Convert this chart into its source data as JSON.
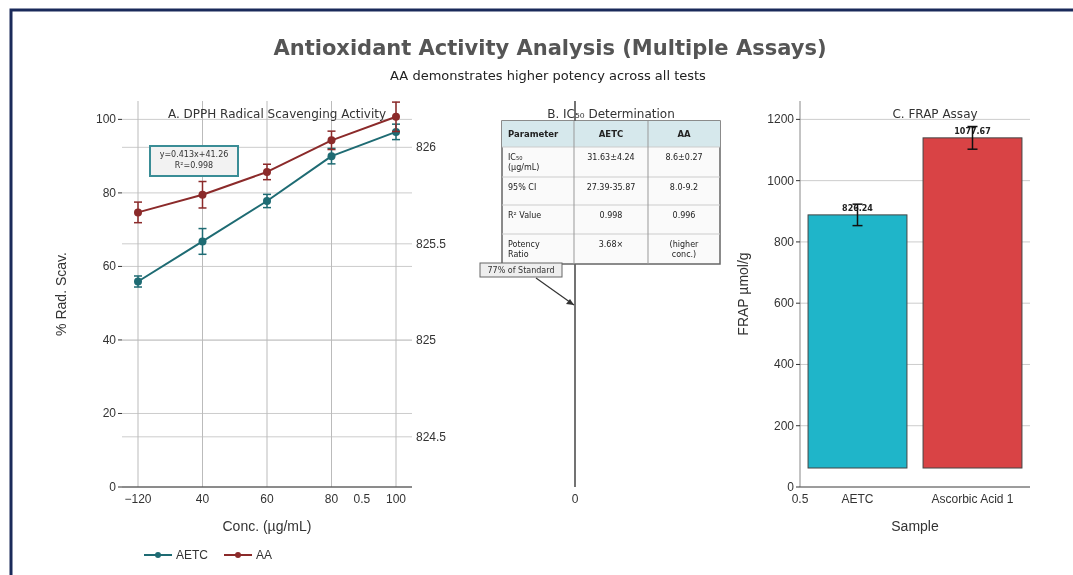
{
  "chart_data": [
    {
      "type": "other",
      "title": "Antioxidant Activity Analysis (Multiple Assays)",
      "subtitle": "AA demonstrates higher potency across all tests"
    },
    {
      "type": "line",
      "title": "A. DPPH Radical Scavenging Activity",
      "xlabel": "Conc. (µg/mL)",
      "ylabel": "% Rad. Scav.",
      "categories": [
        "−120",
        "40",
        "60",
        "80",
        "100"
      ],
      "series": [
        {
          "name": "AETC",
          "color": "#1e6b73",
          "values": [
            55.9,
            66.8,
            77.8,
            90.0,
            96.6
          ],
          "errors": [
            1.5,
            3.5,
            1.8,
            2.1,
            2.1
          ]
        },
        {
          "name": "AA",
          "color": "#8b2a2a",
          "values": [
            74.7,
            79.5,
            85.7,
            94.3,
            100.7
          ],
          "errors": [
            2.8,
            3.6,
            2.1,
            2.5,
            4
          ]
        }
      ],
      "ylim": [
        0,
        105
      ],
      "yticks": [
        0,
        20,
        40,
        60,
        80,
        100
      ],
      "y2lim": [
        824.24,
        826.24
      ],
      "y2ticks": [
        824.5,
        825,
        825.5,
        826
      ],
      "annotations": [
        "y=0.413x+41.26\nR²=0.998",
        "0.5"
      ],
      "grid": true,
      "legend": "bottom",
      "marker": "circle",
      "line_style": "solid"
    },
    {
      "type": "other",
      "title": "B. IC₅₀ Determination",
      "annotations": [
        "Parameter",
        "AETC",
        "AA",
        "IC₅₀\n(µg/mL)",
        "31.63±4.24",
        "8.6±0.27",
        "95% CI",
        "27.39-35.87",
        "8.0-9.2",
        "R² Value",
        "0.998",
        "0.996",
        "Potency\nRatio",
        "3.68×",
        "(higher\nconc.)",
        "77% of Standard",
        "0"
      ]
    },
    {
      "type": "bar",
      "title": "C. FRAP Assay",
      "xlabel": "Sample",
      "ylabel": "FRAP µmol/g",
      "categories": [
        "AETC",
        "Ascorbic Acid 1"
      ],
      "values": [
        826.24,
        1077.67
      ],
      "base": [
        62,
        62
      ],
      "colors": [
        "#1fb5c9",
        "#d94345"
      ],
      "errors": [
        35,
        37
      ],
      "data_labels": true,
      "ylim": [
        0,
        1260
      ],
      "yticks": [
        0,
        200,
        400,
        600,
        800,
        1000,
        1200
      ],
      "annotations": [
        "0.5"
      ],
      "grid": "y"
    }
  ]
}
